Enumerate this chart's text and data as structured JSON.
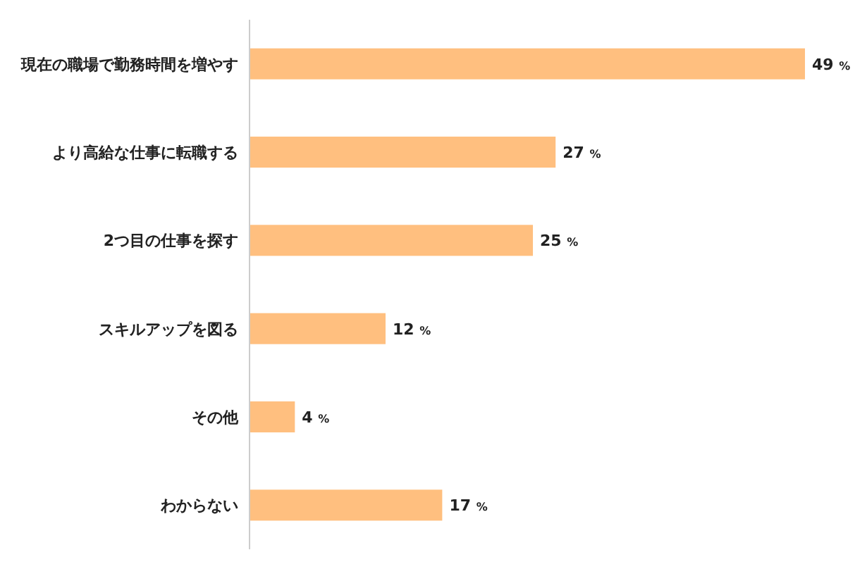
{
  "chart_data": {
    "type": "bar",
    "orientation": "horizontal",
    "categories": [
      "現在の職場で勤務時間を増やす",
      "より高給な仕事に転職する",
      "2つ目の仕事を探す",
      "スキルアップを図る",
      "その他",
      "わからない"
    ],
    "values": [
      49,
      27,
      25,
      12,
      4,
      17
    ],
    "value_labels": [
      "49 %",
      "27 %",
      "25 %",
      "12 %",
      "4 %",
      "17 %"
    ],
    "color": "#ffbf7f",
    "grid": false
  }
}
